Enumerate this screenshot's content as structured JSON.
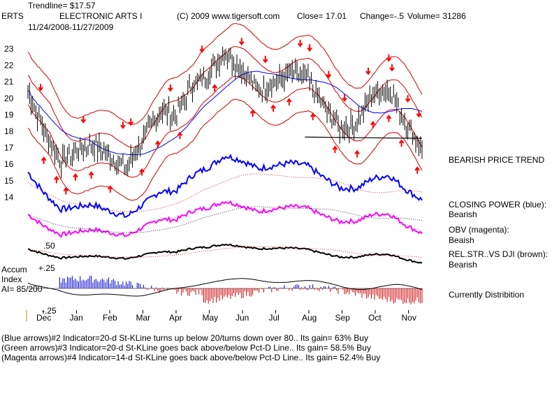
{
  "header": {
    "trendline": "Trendline= $17.57",
    "symbol": "ERTS",
    "company": "ELECTRONIC ARTS I",
    "copyright": "(C) 2009 www.tigersoft.com",
    "close": "Close=  17.01",
    "change": "Change=-.5",
    "volume": "Volume=  31286",
    "date_range": "11/24/2008-11/27/2009"
  },
  "side_labels": {
    "price_trend": "BEARISH PRICE TREND",
    "closing_power": "CLOSING POWER (blue):",
    "closing_power_value": "Bearish",
    "obv": "OBV (magenta):",
    "obv_value": "Beaish",
    "relstr": "REL.STR..VS DJI (brown):",
    "relstr_value": "Bearish",
    "distribution": "Currently Distribition"
  },
  "accum": {
    "title1": "Accum",
    "title2": "Index",
    "ai": "AI= 85/200",
    "tick_50": ".50",
    "tick_25": "+.25",
    "tick_neg25": "-.25"
  },
  "footer": {
    "line1": "(Blue arrows)#2 Indicator=20-d St-KLine turns up below 20/turns down over 80.. Its gain= 63% Buy",
    "line2": "(Green arrows)#3 Indicator=20-d St-KLine goes back above/below Pct-D Line.. Its gain= 58.5% Buy",
    "line3": "(Magenta arrows)#4 Indicator=14-d St-KLine goes back above/below Pct-D Line.. Its gain= 52.4% Buy"
  },
  "colors": {
    "price": "#000000",
    "bands": "#d00000",
    "ma": "#0000ff",
    "closing_power": "#0000ff",
    "obv": "#ff00ff",
    "relstr": "#000000",
    "arrows": "#ff0000",
    "accum_pos": "#0000cc",
    "accum_neg": "#cc0000"
  },
  "chart_data": {
    "type": "line",
    "y_ticks": [
      "23",
      "22",
      "21",
      "20",
      "19",
      "18",
      "17",
      "16",
      "15",
      "14"
    ],
    "ylim": [
      14,
      23
    ],
    "x_month_labels": [
      "Dec",
      "Jan",
      "Feb",
      "Mar",
      "Apr",
      "May",
      "Jun",
      "Jul",
      "Aug",
      "Sep",
      "Oct",
      "Nov"
    ],
    "trendline_value": 17.57,
    "close_series": {
      "name": "ERTS close",
      "x": [
        "Nov",
        "Dec",
        "Dec",
        "Jan",
        "Jan",
        "Feb",
        "Feb",
        "Mar",
        "Mar",
        "Apr",
        "Apr",
        "May",
        "May",
        "Jun",
        "Jun",
        "Jul",
        "Jul",
        "Aug",
        "Aug",
        "Sep",
        "Sep",
        "Oct",
        "Oct",
        "Nov",
        "Nov"
      ],
      "values": [
        20.5,
        18.0,
        16.2,
        16.8,
        17.2,
        16.5,
        15.8,
        17.5,
        19.2,
        19.0,
        20.8,
        21.5,
        22.8,
        21.8,
        20.5,
        21.0,
        21.5,
        21.2,
        19.5,
        18.2,
        18.5,
        20.2,
        20.6,
        18.5,
        17.01
      ]
    },
    "arrows": {
      "down_count": 17,
      "up_count": 20
    }
  }
}
